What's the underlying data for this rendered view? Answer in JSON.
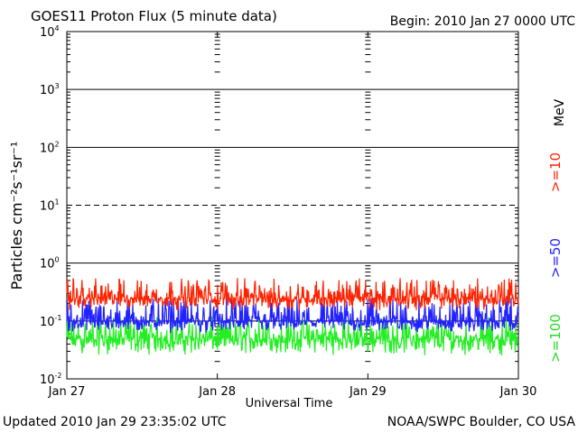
{
  "header": {
    "title": "GOES11 Proton Flux (5 minute data)",
    "begin": "Begin: 2010 Jan 27 0000 UTC"
  },
  "footer": {
    "updated": "Updated 2010 Jan 29 23:35:02 UTC",
    "credit": "NOAA/SWPC Boulder, CO USA"
  },
  "chart_data": {
    "type": "line",
    "title": "GOES11 Proton Flux (5 minute data)",
    "xlabel": "Universal Time",
    "ylabel": "Particles cm⁻²s⁻¹sr⁻¹",
    "y_scale": "log",
    "ylim": [
      0.01,
      10000
    ],
    "xlim": [
      "2010-01-27",
      "2010-01-30"
    ],
    "x_tick_labels": [
      "Jan 27",
      "Jan 28",
      "Jan 29",
      "Jan 30"
    ],
    "y_tick_labels": [
      {
        "base": "10",
        "exp": "-2"
      },
      {
        "base": "10",
        "exp": "-1"
      },
      {
        "base": "10",
        "exp": "0"
      },
      {
        "base": "10",
        "exp": "1"
      },
      {
        "base": "10",
        "exp": "2"
      },
      {
        "base": "10",
        "exp": "3"
      },
      {
        "base": "10",
        "exp": "4"
      }
    ],
    "unit_label": "MeV",
    "series": [
      {
        "name": ">=10",
        "color": "#ff2200",
        "approx_level": 0.25,
        "approx_range": [
          0.15,
          0.55
        ]
      },
      {
        "name": ">=50",
        "color": "#2222ff",
        "approx_level": 0.1,
        "approx_range": [
          0.06,
          0.25
        ]
      },
      {
        "name": ">=100",
        "color": "#22ee22",
        "approx_level": 0.05,
        "approx_range": [
          0.025,
          0.12
        ]
      }
    ],
    "reference_lines": [
      {
        "value": 10,
        "style": "dashed"
      }
    ],
    "grid": "horizontal at each decade"
  }
}
